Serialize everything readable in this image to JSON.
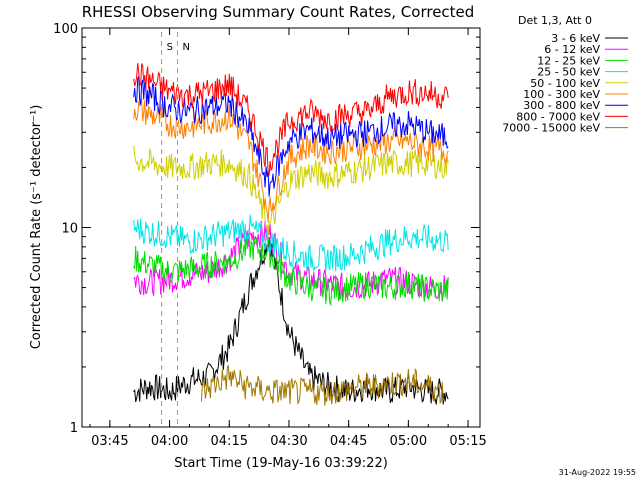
{
  "chart_data": {
    "type": "line",
    "title": "RHESSI Observing Summary Count Rates, Corrected",
    "xlabel": "Start Time (19-May-16 03:39:22)",
    "ylabel": "Corrected Count Rate (s⁻¹ detector⁻¹)",
    "x_range": [
      "03:38",
      "05:18"
    ],
    "ylim": [
      1,
      100
    ],
    "y_scale": "log",
    "grid": false,
    "x_ticks": [
      "03:45",
      "04:00",
      "04:15",
      "04:30",
      "04:45",
      "05:00",
      "05:15"
    ],
    "y_ticks": [
      "1",
      "10",
      "100"
    ],
    "legend_title": "Det 1,3, Att 0",
    "legend_position": "top-right",
    "timestamp": "31-Aug-2022 19:55",
    "markers": [
      {
        "label": "S",
        "time": "03:58",
        "color": "#ff8000"
      },
      {
        "label": "N",
        "time": "04:02",
        "color": "#00e5e5"
      }
    ],
    "series": [
      {
        "name": "3 - 6 keV",
        "color": "#000000",
        "x": [
          "03:51",
          "03:55",
          "04:00",
          "04:05",
          "04:10",
          "04:15",
          "04:20",
          "04:25",
          "04:30",
          "04:35",
          "04:40",
          "04:45",
          "04:50",
          "04:55",
          "05:00",
          "05:05",
          "05:10"
        ],
        "y": [
          1.5,
          1.6,
          1.5,
          1.7,
          1.8,
          2.5,
          5.0,
          9.0,
          3.0,
          1.8,
          1.6,
          1.5,
          1.6,
          1.5,
          1.6,
          1.5,
          1.5
        ]
      },
      {
        "name": "6 - 12 keV",
        "color": "#ff00ff",
        "x": [
          "03:51",
          "03:55",
          "04:00",
          "04:05",
          "04:10",
          "04:15",
          "04:20",
          "04:25",
          "04:30",
          "04:35",
          "04:40",
          "04:45",
          "04:50",
          "04:55",
          "05:00",
          "05:05",
          "05:10"
        ],
        "y": [
          5.5,
          5.3,
          5.5,
          5.8,
          6.0,
          7.0,
          9.0,
          9.5,
          6.0,
          5.5,
          5.2,
          5.0,
          5.2,
          5.5,
          5.3,
          5.0,
          5.0
        ]
      },
      {
        "name": "12 - 25 keV",
        "color": "#00dd00",
        "x": [
          "03:51",
          "03:55",
          "04:00",
          "04:05",
          "04:10",
          "04:15",
          "04:20",
          "04:25",
          "04:30",
          "04:35",
          "04:40",
          "04:45",
          "04:50",
          "04:55",
          "05:00",
          "05:05",
          "05:10"
        ],
        "y": [
          7.0,
          6.5,
          6.0,
          6.2,
          6.5,
          6.8,
          8.0,
          7.5,
          5.5,
          5.0,
          4.8,
          5.0,
          5.2,
          5.0,
          5.2,
          4.9,
          4.8
        ]
      },
      {
        "name": "25 - 50 keV",
        "color": "#00e5e5",
        "x": [
          "03:51",
          "03:55",
          "04:00",
          "04:05",
          "04:10",
          "04:15",
          "04:20",
          "04:25",
          "04:30",
          "04:35",
          "04:40",
          "04:45",
          "04:50",
          "04:55",
          "05:00",
          "05:05",
          "05:10"
        ],
        "y": [
          10.0,
          9.5,
          9.0,
          8.5,
          9.0,
          9.5,
          10.0,
          8.5,
          7.5,
          7.0,
          7.0,
          7.2,
          7.8,
          8.5,
          9.0,
          8.8,
          8.5
        ]
      },
      {
        "name": "50 - 100 keV",
        "color": "#d0d000",
        "x": [
          "03:51",
          "03:55",
          "04:00",
          "04:05",
          "04:10",
          "04:15",
          "04:20",
          "04:25",
          "04:30",
          "04:35",
          "04:40",
          "04:45",
          "04:50",
          "04:55",
          "05:00",
          "05:05",
          "05:10"
        ],
        "y": [
          22,
          21,
          20,
          20,
          21,
          21,
          18,
          10,
          17,
          19,
          18,
          19,
          20,
          21,
          21,
          21,
          20
        ]
      },
      {
        "name": "100 - 300 keV",
        "color": "#ff8000",
        "x": [
          "03:51",
          "03:55",
          "04:00",
          "04:05",
          "04:10",
          "04:15",
          "04:20",
          "04:25",
          "04:30",
          "04:35",
          "04:40",
          "04:45",
          "04:50",
          "04:55",
          "05:00",
          "05:05",
          "05:10"
        ],
        "y": [
          40,
          37,
          33,
          32,
          34,
          36,
          26,
          12,
          22,
          26,
          24,
          25,
          26,
          27,
          27,
          25,
          24
        ]
      },
      {
        "name": "300 - 800 keV",
        "color": "#0000ff",
        "x": [
          "03:51",
          "03:55",
          "04:00",
          "04:05",
          "04:10",
          "04:15",
          "04:20",
          "04:25",
          "04:30",
          "04:35",
          "04:40",
          "04:45",
          "04:50",
          "04:55",
          "05:00",
          "05:05",
          "05:10"
        ],
        "y": [
          50,
          46,
          40,
          38,
          40,
          42,
          31,
          16,
          27,
          31,
          28,
          29,
          30,
          32,
          33,
          30,
          28
        ]
      },
      {
        "name": "800 - 7000 keV",
        "color": "#ff0000",
        "x": [
          "03:51",
          "03:55",
          "04:00",
          "04:05",
          "04:10",
          "04:15",
          "04:20",
          "04:25",
          "04:30",
          "04:35",
          "04:40",
          "04:45",
          "04:50",
          "04:55",
          "05:00",
          "05:05",
          "05:10"
        ],
        "y": [
          60,
          55,
          48,
          46,
          48,
          52,
          38,
          21,
          34,
          38,
          35,
          37,
          38,
          45,
          48,
          47,
          45
        ]
      },
      {
        "name": "7000 - 15000 keV",
        "color": "#a07800",
        "x": [
          "04:08",
          "04:15",
          "04:19",
          "04:25",
          "04:40",
          "05:00",
          "05:05",
          "05:09"
        ],
        "y": [
          1.5,
          1.8,
          1.6,
          1.5,
          1.5,
          1.7,
          1.6,
          1.5
        ]
      }
    ]
  }
}
